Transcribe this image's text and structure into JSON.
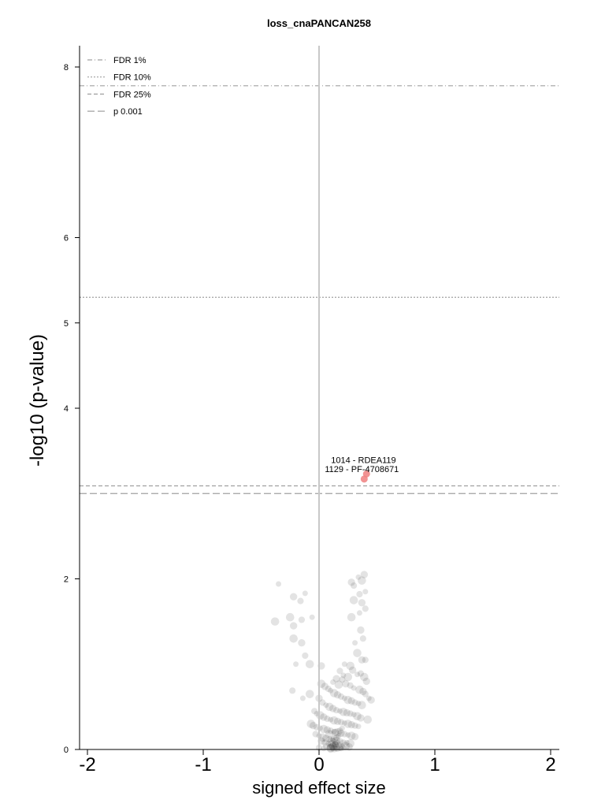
{
  "chart_data": {
    "type": "scatter",
    "title": "loss_cnaPANCAN258",
    "xlabel": "signed effect size",
    "ylabel": "-log10 (p-value)",
    "xlim": [
      -2.07,
      2.07
    ],
    "ylim": [
      0,
      8.3
    ],
    "x_ticks": [
      -2,
      -1,
      0,
      1,
      2
    ],
    "x_tick_labels": [
      "-2",
      "-1",
      "0",
      "1",
      "2"
    ],
    "y_ticks": [
      0,
      2,
      4,
      5,
      6,
      8
    ],
    "y_tick_labels": [
      "0",
      "2",
      "4",
      "5",
      "6",
      "8"
    ],
    "grid": false,
    "legend_position": "top-left",
    "thresholds": [
      {
        "name": "FDR 1%",
        "y": 7.78,
        "dash": "6,3,1,3"
      },
      {
        "name": "FDR 10%",
        "y": 5.3,
        "dash": "2,2"
      },
      {
        "name": "FDR 25%",
        "y": 3.09,
        "dash": "5,3"
      },
      {
        "name": "p 0.001",
        "y": 3.0,
        "dash": "9,4"
      }
    ],
    "highlight_color": "#f08080",
    "point_color": "#000000",
    "highlighted": [
      {
        "x": 0.41,
        "y": 3.23,
        "label": "1014 - RDEA119"
      },
      {
        "x": 0.39,
        "y": 3.17,
        "label": "1129 - PF-4708671"
      }
    ],
    "points": [
      [
        -0.35,
        1.94
      ],
      [
        -0.38,
        1.5
      ],
      [
        -0.22,
        1.79
      ],
      [
        -0.16,
        1.74
      ],
      [
        -0.12,
        1.83
      ],
      [
        -0.25,
        1.55
      ],
      [
        -0.22,
        1.45
      ],
      [
        -0.15,
        1.52
      ],
      [
        -0.06,
        1.55
      ],
      [
        -0.22,
        1.3
      ],
      [
        -0.15,
        1.25
      ],
      [
        -0.12,
        1.1
      ],
      [
        -0.2,
        1.0
      ],
      [
        -0.08,
        1.0
      ],
      [
        0.02,
        0.98
      ],
      [
        -0.23,
        0.69
      ],
      [
        -0.14,
        0.6
      ],
      [
        -0.08,
        0.65
      ],
      [
        0.28,
        1.96
      ],
      [
        0.3,
        1.92
      ],
      [
        0.34,
        2.02
      ],
      [
        0.37,
        1.98
      ],
      [
        0.39,
        2.05
      ],
      [
        0.35,
        1.82
      ],
      [
        0.4,
        1.85
      ],
      [
        0.3,
        1.75
      ],
      [
        0.37,
        1.72
      ],
      [
        0.4,
        1.65
      ],
      [
        0.35,
        1.6
      ],
      [
        0.28,
        1.55
      ],
      [
        0.36,
        1.4
      ],
      [
        0.38,
        1.3
      ],
      [
        0.31,
        1.25
      ],
      [
        0.33,
        1.13
      ],
      [
        0.37,
        1.05
      ],
      [
        0.4,
        1.05
      ],
      [
        0.22,
        1.0
      ],
      [
        0.27,
        0.98
      ],
      [
        0.29,
        0.93
      ],
      [
        0.36,
        0.89
      ],
      [
        0.33,
        0.88
      ],
      [
        0.39,
        0.85
      ],
      [
        0.41,
        0.8
      ],
      [
        0.18,
        0.92
      ],
      [
        0.21,
        0.87
      ],
      [
        0.25,
        0.85
      ],
      [
        0.15,
        0.83
      ],
      [
        0.2,
        0.82
      ],
      [
        0.12,
        0.79
      ],
      [
        0.17,
        0.76
      ],
      [
        0.23,
        0.77
      ],
      [
        0.27,
        0.75
      ],
      [
        0.3,
        0.72
      ],
      [
        0.35,
        0.7
      ],
      [
        0.38,
        0.68
      ],
      [
        0.4,
        0.65
      ],
      [
        0.43,
        0.6
      ],
      [
        0.02,
        0.77
      ],
      [
        0.05,
        0.74
      ],
      [
        0.08,
        0.71
      ],
      [
        0.1,
        0.69
      ],
      [
        0.13,
        0.66
      ],
      [
        0.16,
        0.64
      ],
      [
        0.19,
        0.62
      ],
      [
        0.22,
        0.6
      ],
      [
        0.25,
        0.58
      ],
      [
        0.28,
        0.57
      ],
      [
        0.31,
        0.55
      ],
      [
        0.34,
        0.54
      ],
      [
        0.37,
        0.52
      ],
      [
        0.0,
        0.6
      ],
      [
        0.03,
        0.55
      ],
      [
        0.06,
        0.52
      ],
      [
        0.09,
        0.5
      ],
      [
        0.12,
        0.48
      ],
      [
        0.15,
        0.46
      ],
      [
        0.18,
        0.45
      ],
      [
        0.21,
        0.44
      ],
      [
        0.24,
        0.43
      ],
      [
        0.27,
        0.42
      ],
      [
        0.3,
        0.41
      ],
      [
        0.33,
        0.39
      ],
      [
        0.36,
        0.37
      ],
      [
        -0.04,
        0.45
      ],
      [
        -0.02,
        0.42
      ],
      [
        0.01,
        0.4
      ],
      [
        0.04,
        0.38
      ],
      [
        0.07,
        0.36
      ],
      [
        0.1,
        0.35
      ],
      [
        0.13,
        0.34
      ],
      [
        0.16,
        0.33
      ],
      [
        0.19,
        0.32
      ],
      [
        0.22,
        0.31
      ],
      [
        0.25,
        0.3
      ],
      [
        0.28,
        0.29
      ],
      [
        0.31,
        0.28
      ],
      [
        0.34,
        0.27
      ],
      [
        -0.07,
        0.3
      ],
      [
        -0.05,
        0.28
      ],
      [
        -0.02,
        0.26
      ],
      [
        0.01,
        0.25
      ],
      [
        0.04,
        0.24
      ],
      [
        0.07,
        0.23
      ],
      [
        0.1,
        0.22
      ],
      [
        0.13,
        0.21
      ],
      [
        0.16,
        0.2
      ],
      [
        0.19,
        0.19
      ],
      [
        0.22,
        0.18
      ],
      [
        0.25,
        0.17
      ],
      [
        0.28,
        0.16
      ],
      [
        0.31,
        0.15
      ],
      [
        -0.03,
        0.18
      ],
      [
        0.0,
        0.16
      ],
      [
        0.03,
        0.14
      ],
      [
        0.06,
        0.13
      ],
      [
        0.09,
        0.12
      ],
      [
        0.12,
        0.11
      ],
      [
        0.15,
        0.1
      ],
      [
        0.18,
        0.09
      ],
      [
        0.21,
        0.08
      ],
      [
        0.24,
        0.08
      ],
      [
        0.27,
        0.07
      ],
      [
        0.02,
        0.1
      ],
      [
        0.05,
        0.08
      ],
      [
        0.08,
        0.07
      ],
      [
        0.11,
        0.06
      ],
      [
        0.14,
        0.05
      ],
      [
        0.17,
        0.05
      ],
      [
        0.2,
        0.04
      ],
      [
        0.23,
        0.04
      ],
      [
        0.26,
        0.03
      ],
      [
        0.06,
        0.04
      ],
      [
        0.09,
        0.03
      ],
      [
        0.12,
        0.03
      ],
      [
        0.15,
        0.02
      ],
      [
        0.18,
        0.02
      ],
      [
        0.21,
        0.02
      ],
      [
        0.1,
        0.01
      ],
      [
        0.13,
        0.01
      ],
      [
        0.16,
        0.01
      ],
      [
        0.19,
        0.01
      ],
      [
        0.1,
        0.02
      ],
      [
        0.12,
        0.04
      ],
      [
        0.14,
        0.06
      ],
      [
        0.16,
        0.08
      ],
      [
        0.11,
        0.09
      ],
      [
        0.13,
        0.12
      ],
      [
        0.15,
        0.14
      ],
      [
        0.17,
        0.16
      ],
      [
        0.09,
        0.18
      ],
      [
        0.14,
        0.2
      ],
      [
        0.18,
        0.22
      ],
      [
        0.2,
        0.25
      ],
      [
        0.42,
        0.35
      ],
      [
        0.45,
        0.58
      ],
      [
        0.0,
        0.02
      ],
      [
        0.04,
        0.01
      ]
    ]
  }
}
